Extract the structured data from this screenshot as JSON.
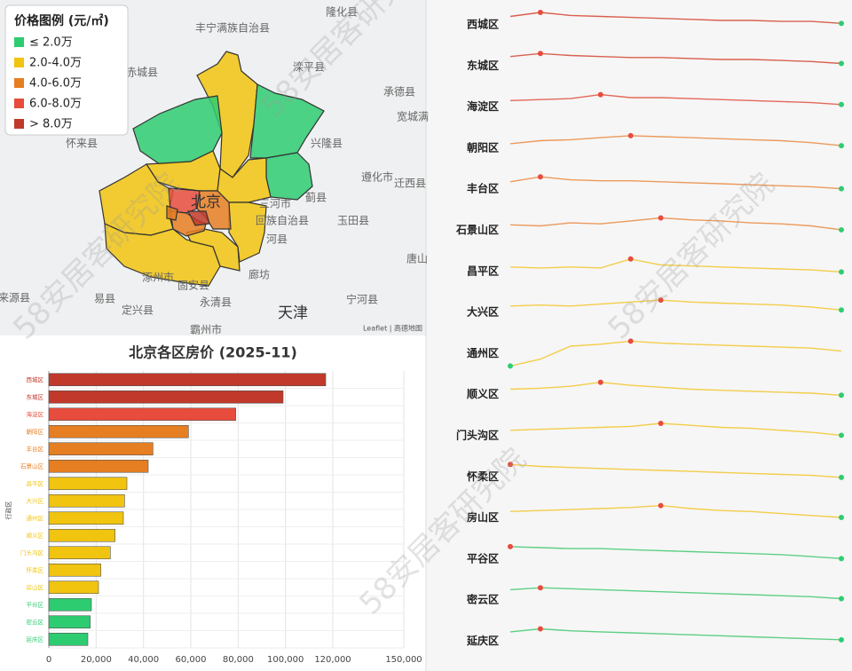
{
  "watermark": "58安居客研究院",
  "map": {
    "legend": {
      "title": "价格图例 (元/㎡)",
      "items": [
        {
          "label": "≤ 2.0万",
          "color": "#2ecc71"
        },
        {
          "label": "2.0-4.0万",
          "color": "#f1c40f"
        },
        {
          "label": "4.0-6.0万",
          "color": "#e67e22"
        },
        {
          "label": "6.0-8.0万",
          "color": "#e74c3c"
        },
        {
          "label": "> 8.0万",
          "color": "#c0392b"
        }
      ]
    },
    "places": [
      "丰宁满族自治县",
      "隆化县",
      "滦平县",
      "承德县",
      "宽城满",
      "兴隆县",
      "遵化市",
      "迁西县",
      "蓟县",
      "玉田县",
      "三河市",
      "回族自治县",
      "河县",
      "廊坊",
      "唐山",
      "天津",
      "宁河县",
      "固安县",
      "永清县",
      "涿州市",
      "易县",
      "定兴县",
      "怀来县",
      "赤城县",
      "北京",
      "霸州市",
      "来源县"
    ],
    "attribution": "Leaflet | 高德地图"
  },
  "chart_data": [
    {
      "type": "bar",
      "title": "北京各区房价 (2025-11)",
      "y_label": "行政区",
      "categories": [
        "西城区",
        "东城区",
        "海淀区",
        "朝阳区",
        "丰台区",
        "石景山区",
        "昌平区",
        "大兴区",
        "通州区",
        "顺义区",
        "门头沟区",
        "怀柔区",
        "房山区",
        "平谷区",
        "密云区",
        "延庆区"
      ],
      "values": [
        117000,
        99000,
        79000,
        59000,
        44000,
        42000,
        33000,
        32000,
        31500,
        28000,
        26000,
        22000,
        21000,
        18000,
        17500,
        16500
      ],
      "colors": [
        "#c0392b",
        "#c0392b",
        "#e74c3c",
        "#e67e22",
        "#e67e22",
        "#e67e22",
        "#f1c40f",
        "#f1c40f",
        "#f1c40f",
        "#f1c40f",
        "#f1c40f",
        "#f1c40f",
        "#f1c40f",
        "#2ecc71",
        "#2ecc71",
        "#2ecc71"
      ],
      "xlim": [
        0,
        150000
      ],
      "xticks": [
        0,
        {
          "value": 20000,
          "label": "20,000"
        },
        {
          "value": 40000,
          "label": "40,000"
        },
        {
          "value": 60000,
          "label": "60,000"
        },
        {
          "value": 80000,
          "label": "80,000"
        },
        {
          "value": 100000,
          "label": "100,000"
        },
        {
          "value": 120000,
          "label": "120,000"
        },
        {
          "value": 150000,
          "label": "150,000"
        }
      ],
      "grid": true
    },
    {
      "type": "line",
      "max_marker_color": "#e74c3c",
      "min_marker_color": "#2ecc71",
      "series": [
        {
          "name": "西城区",
          "color": "#d9604f",
          "values": [
            96,
            100,
            97,
            96,
            95,
            94,
            93,
            92,
            92,
            91,
            91,
            89
          ]
        },
        {
          "name": "东城区",
          "color": "#d9604f",
          "values": [
            97,
            100,
            98,
            97,
            96,
            96,
            95,
            94,
            94,
            93,
            92,
            90
          ]
        },
        {
          "name": "海淀区",
          "color": "#e4685a",
          "values": [
            94,
            95,
            96,
            100,
            97,
            97,
            96,
            95,
            94,
            93,
            92,
            90
          ]
        },
        {
          "name": "朝阳区",
          "color": "#eb9a5c",
          "values": [
            92,
            95,
            96,
            98,
            100,
            99,
            98,
            97,
            96,
            95,
            93,
            90
          ]
        },
        {
          "name": "丰台区",
          "color": "#eb9a5c",
          "values": [
            95,
            100,
            97,
            96,
            96,
            95,
            94,
            93,
            92,
            91,
            90,
            88
          ]
        },
        {
          "name": "石景山区",
          "color": "#eb9a5c",
          "values": [
            93,
            92,
            95,
            94,
            97,
            100,
            98,
            97,
            95,
            94,
            92,
            88
          ]
        },
        {
          "name": "昌平区",
          "color": "#f3cd4a",
          "values": [
            92,
            91,
            92,
            91,
            100,
            94,
            93,
            92,
            91,
            90,
            89,
            87
          ]
        },
        {
          "name": "大兴区",
          "color": "#f3cd4a",
          "values": [
            94,
            95,
            94,
            96,
            98,
            100,
            98,
            97,
            96,
            95,
            93,
            90
          ]
        },
        {
          "name": "通州区",
          "color": "#f3cd4a",
          "values": [
            75,
            82,
            95,
            97,
            100,
            98,
            97,
            96,
            95,
            94,
            93,
            90
          ]
        },
        {
          "name": "顺义区",
          "color": "#f3cd4a",
          "values": [
            93,
            94,
            96,
            100,
            97,
            95,
            93,
            92,
            91,
            90,
            89,
            87
          ]
        },
        {
          "name": "门头沟区",
          "color": "#f3cd4a",
          "values": [
            93,
            94,
            95,
            96,
            97,
            100,
            98,
            96,
            95,
            93,
            91,
            88
          ]
        },
        {
          "name": "怀柔区",
          "color": "#f3cd4a",
          "values": [
            100,
            98,
            97,
            96,
            95,
            94,
            93,
            92,
            91,
            90,
            89,
            87
          ]
        },
        {
          "name": "房山区",
          "color": "#f3cd4a",
          "values": [
            94,
            95,
            96,
            97,
            98,
            100,
            97,
            95,
            94,
            92,
            90,
            88
          ]
        },
        {
          "name": "平谷区",
          "color": "#5fcf85",
          "values": [
            100,
            99,
            98,
            98,
            97,
            96,
            95,
            94,
            93,
            92,
            90,
            88
          ]
        },
        {
          "name": "密云区",
          "color": "#5fcf85",
          "values": [
            98,
            100,
            99,
            98,
            97,
            96,
            95,
            94,
            93,
            92,
            91,
            89
          ]
        },
        {
          "name": "延庆区",
          "color": "#5fcf85",
          "values": [
            97,
            100,
            98,
            97,
            96,
            95,
            94,
            93,
            92,
            91,
            90,
            89
          ]
        }
      ]
    }
  ]
}
